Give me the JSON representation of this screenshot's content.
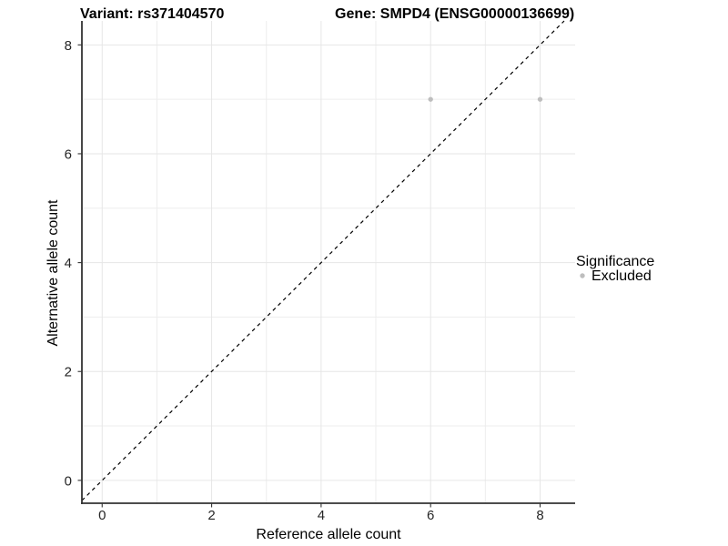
{
  "plot_titles": {
    "left": "Variant: rs371404570",
    "right": "Gene: SMPD4 (ENSG00000136699)"
  },
  "legend": {
    "title": "Significance",
    "position": "right",
    "items": [
      {
        "label": "Excluded",
        "color": "#bebebe"
      }
    ]
  },
  "chart_data": {
    "type": "scatter",
    "title": "Variant: rs371404570 | Gene: SMPD4 (ENSG00000136699)",
    "xlabel": "Reference allele count",
    "ylabel": "Alternative allele count",
    "series": [
      {
        "name": "Excluded",
        "color": "#bebebe",
        "points": [
          {
            "x": 6,
            "y": 7
          },
          {
            "x": 8,
            "y": 7
          }
        ]
      }
    ],
    "reference_line": {
      "kind": "identity y=x",
      "style": "dashed",
      "color": "#000000"
    },
    "x_ticks": [
      0,
      2,
      4,
      6,
      8
    ],
    "y_ticks": [
      0,
      2,
      4,
      6,
      8
    ],
    "x_minor_ticks": [
      1,
      3,
      5,
      7
    ],
    "y_minor_ticks": [
      1,
      3,
      5,
      7
    ],
    "xlim": [
      -0.37,
      8.64
    ],
    "ylim": [
      -0.42,
      8.44
    ],
    "grid": true,
    "legend_position": "right"
  },
  "colors": {
    "background": "#ffffff",
    "grid_major": "#e6e6e6",
    "grid_minor": "#ededed",
    "axis_line": "#333333",
    "tick_mark": "#333333",
    "tick_text": "#262626",
    "title_text": "#000000",
    "point": "#bebebe",
    "dashed_line": "#000000"
  }
}
